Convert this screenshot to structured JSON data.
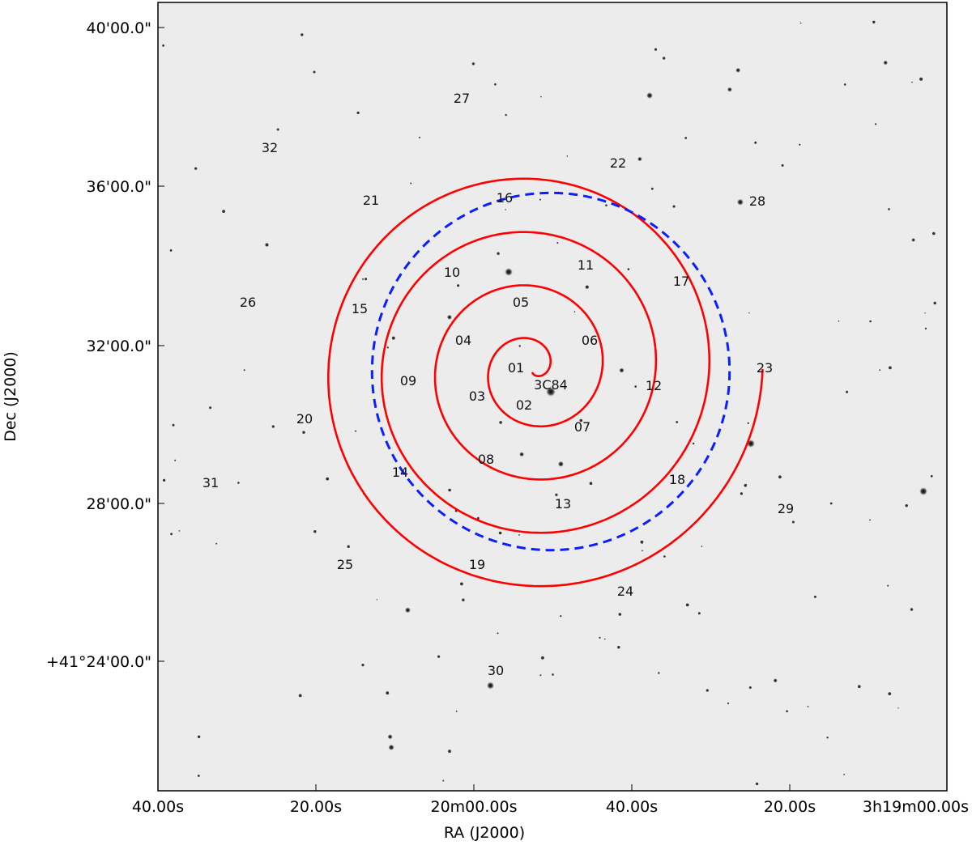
{
  "chart_data": {
    "type": "scatter",
    "subtype": "sky-image-overlay",
    "background": "grayscale optical sky image (inverted, dark stars on light background)",
    "xlabel": "RA (J2000)",
    "ylabel": "Dec (J2000)",
    "x_tick_labels": [
      "40.00s",
      "20.00s",
      "20m00.00s",
      "40.00s",
      "20.00s",
      "3h19m00.00s"
    ],
    "y_tick_labels": [
      "40'00.0\"",
      "36'00.0\"",
      "32'00.0\"",
      "28'00.0\"",
      "+41°24'00.0\""
    ],
    "center_label": "3C84",
    "spiral": {
      "color": "#ff0000",
      "style": "solid",
      "turns": 4.25,
      "center_ra_offset_arcmin": 0.0,
      "center_dec_offset_arcmin": 0.0
    },
    "circle": {
      "color": "#0000ff",
      "style": "dashed",
      "radius_arcmin": 4.55
    },
    "pointing_labels": [
      "01",
      "02",
      "03",
      "04",
      "05",
      "06",
      "07",
      "08",
      "09",
      "10",
      "11",
      "12",
      "13",
      "14",
      "15",
      "16",
      "17",
      "18",
      "19",
      "20",
      "21",
      "22",
      "23",
      "24",
      "25",
      "26",
      "27",
      "28",
      "29",
      "30",
      "31",
      "32"
    ],
    "grid": false
  }
}
